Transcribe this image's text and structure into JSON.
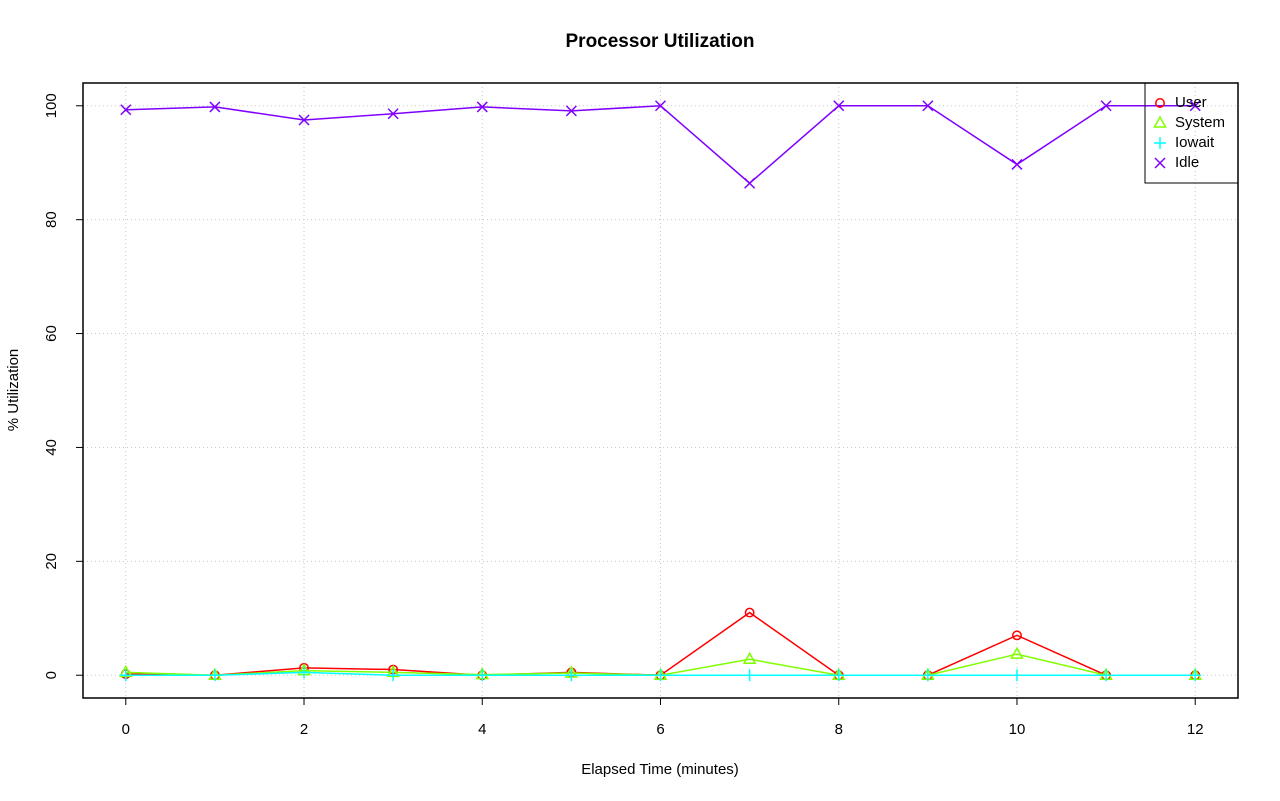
{
  "chart_data": {
    "type": "line",
    "title": "Processor Utilization",
    "x_label": "Elapsed Time (minutes)",
    "y_label": "% Utilization",
    "x": [
      0,
      1,
      2,
      3,
      4,
      5,
      6,
      7,
      8,
      9,
      10,
      11,
      12
    ],
    "series": [
      {
        "name": "User",
        "color": "#ff0000",
        "marker": "circle",
        "values": [
          0.2,
          0,
          1.3,
          1.0,
          0,
          0.5,
          0,
          11.0,
          0,
          0,
          7.0,
          0,
          0
        ]
      },
      {
        "name": "System",
        "color": "#80ff00",
        "marker": "triangle",
        "values": [
          0.5,
          0,
          0.8,
          0.5,
          0.1,
          0.4,
          0,
          2.8,
          0,
          0,
          3.7,
          0,
          0
        ]
      },
      {
        "name": "Iowait",
        "color": "#00ffff",
        "marker": "plus",
        "values": [
          0,
          0,
          0.5,
          0,
          0,
          0,
          0,
          0,
          0,
          0,
          0,
          0,
          0
        ]
      },
      {
        "name": "Idle",
        "color": "#8000ff",
        "marker": "cross",
        "values": [
          99.3,
          99.8,
          97.5,
          98.6,
          99.8,
          99.1,
          100,
          86.4,
          100,
          100,
          89.7,
          100,
          100
        ]
      }
    ],
    "xlim": [
      -0.48,
      12.48
    ],
    "ylim": [
      -4,
      104
    ],
    "xticks": [
      0,
      2,
      4,
      6,
      8,
      10,
      12
    ],
    "yticks": [
      0,
      20,
      40,
      60,
      80,
      100
    ],
    "grid": true,
    "legend": "topright"
  }
}
